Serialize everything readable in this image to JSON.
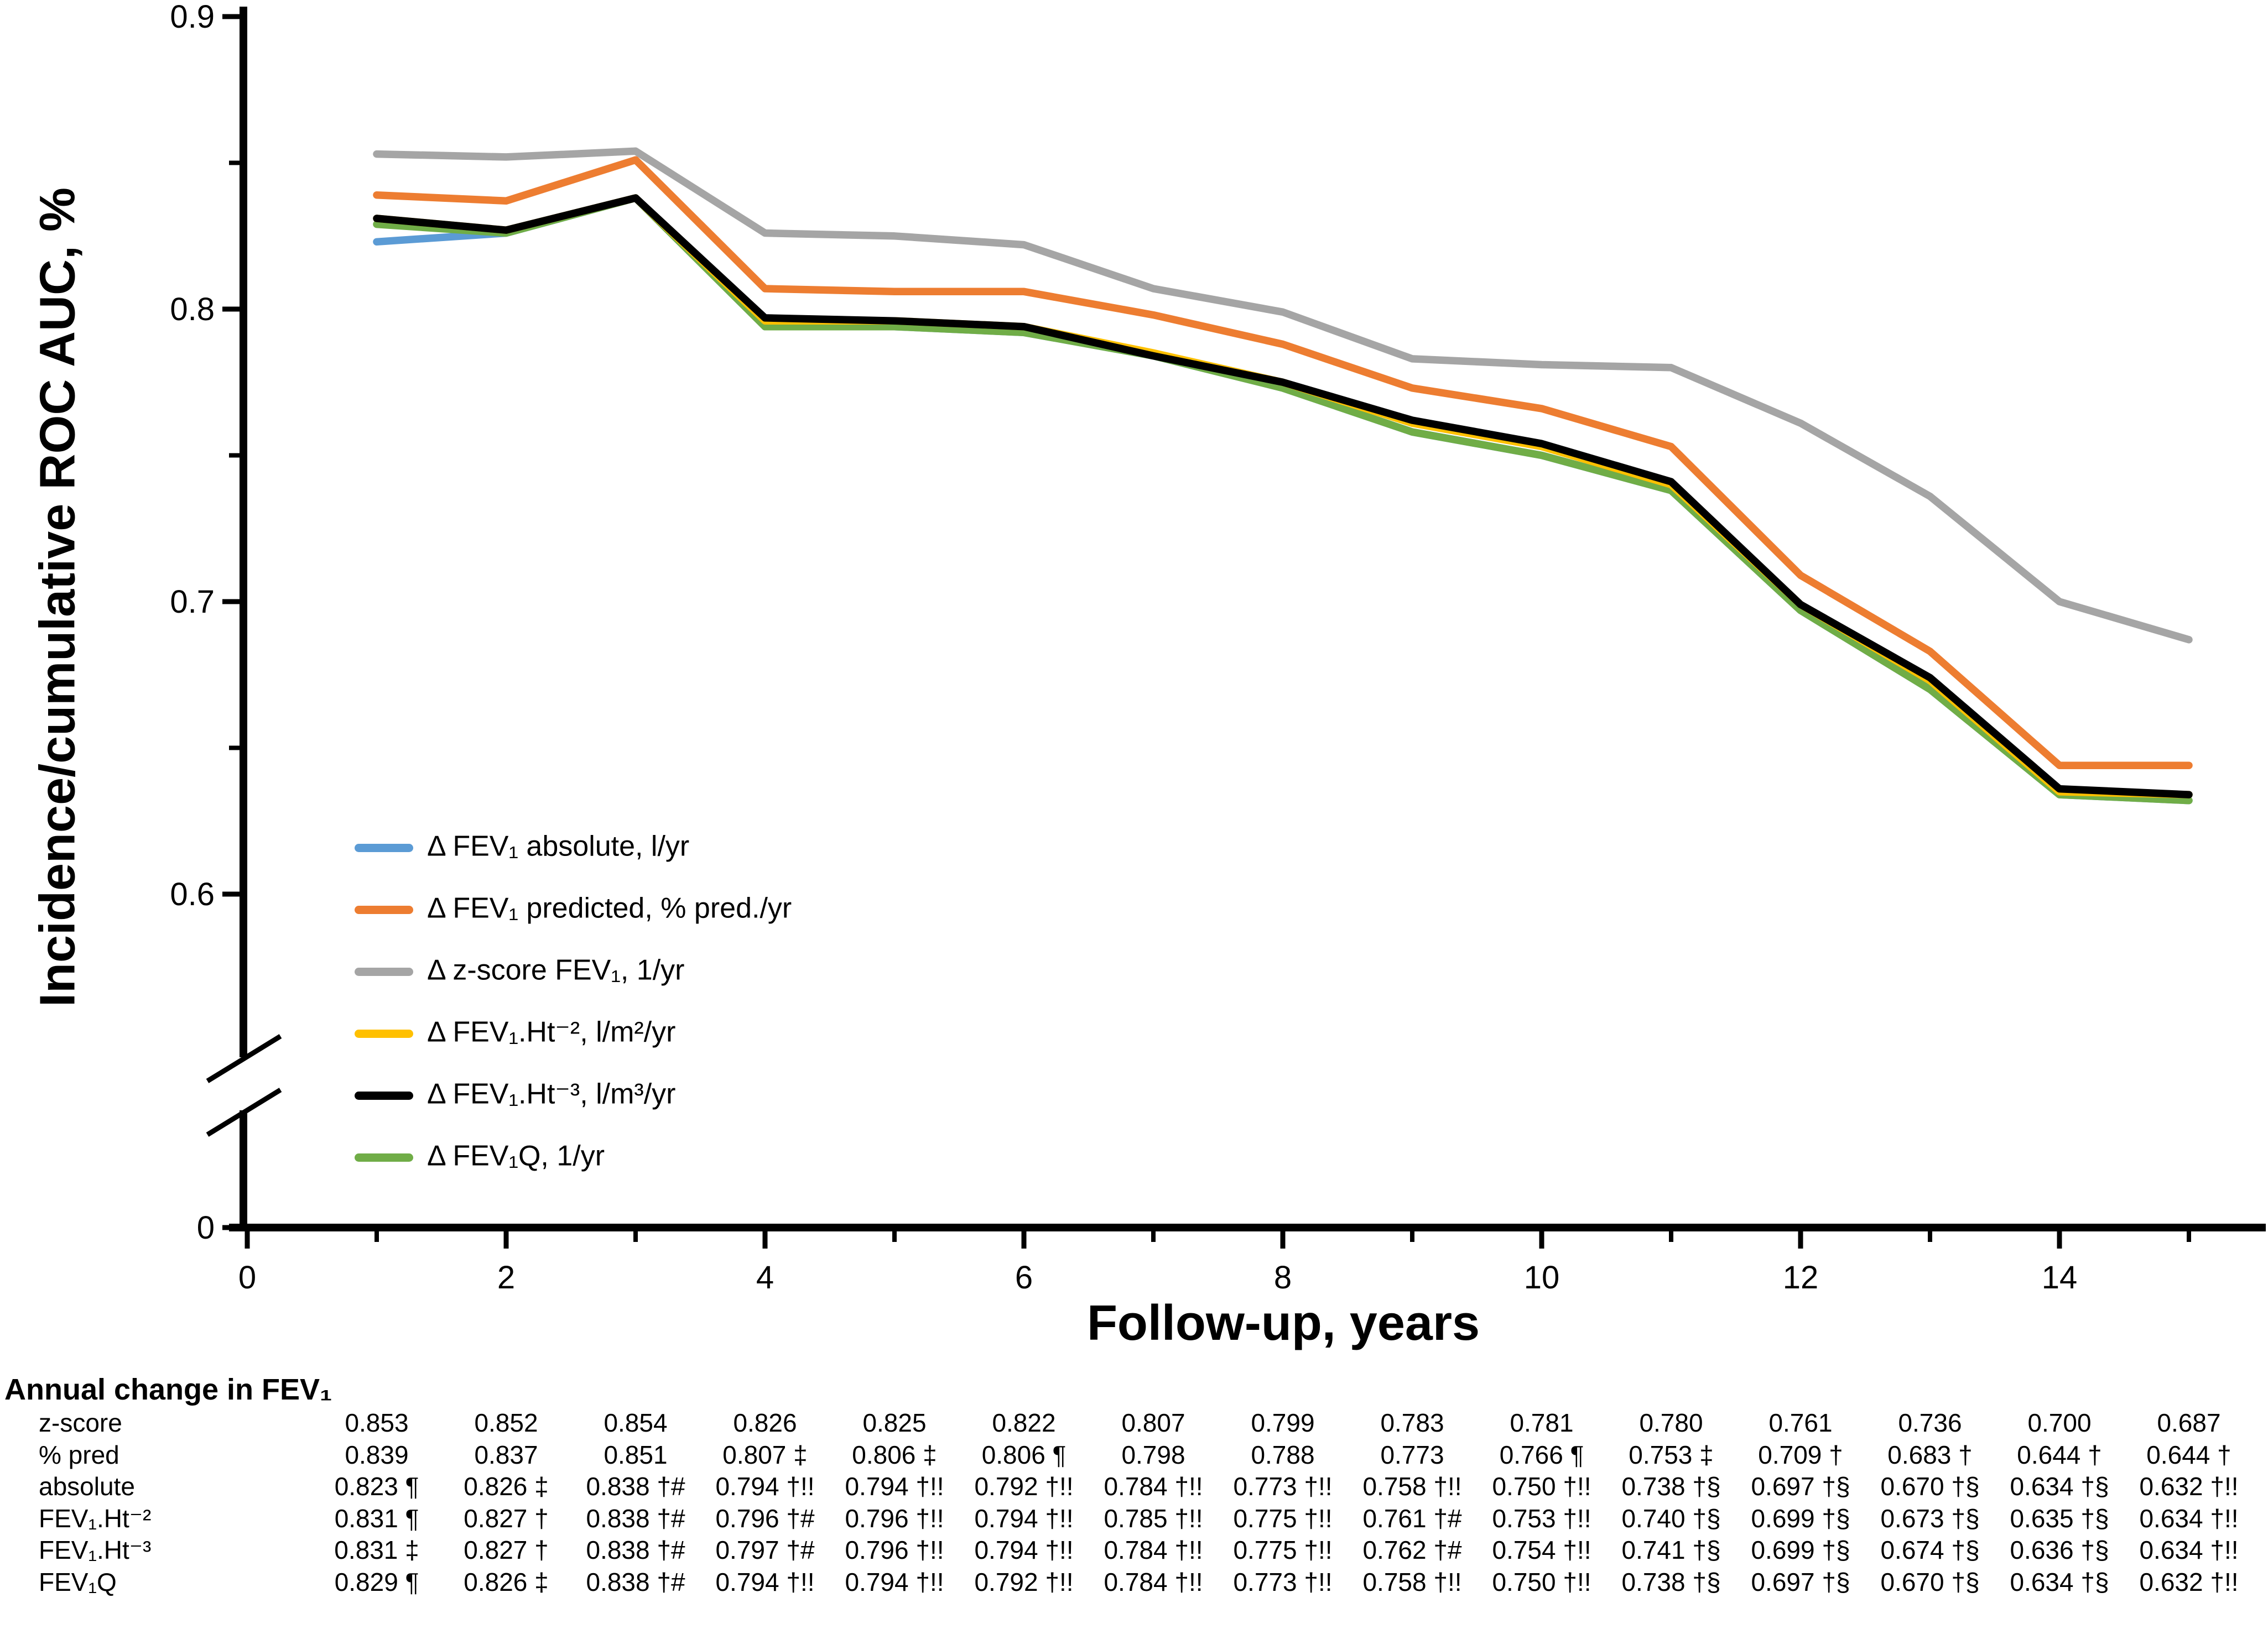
{
  "chart_data": {
    "type": "line",
    "xlabel": "Follow-up, years",
    "ylabel": "Incidence/cumulative ROC AUC, %",
    "x": [
      1,
      2,
      3,
      4,
      5,
      6,
      7,
      8,
      9,
      10,
      11,
      12,
      13,
      14,
      15
    ],
    "series": [
      {
        "name": "Δ FEV₁ absolute, l/yr",
        "slug": "delta-fev1-absolute",
        "color": "#5B9BD5",
        "values": [
          0.823,
          0.826,
          0.838,
          0.794,
          0.794,
          0.792,
          0.784,
          0.773,
          0.758,
          0.75,
          0.738,
          0.697,
          0.67,
          0.634,
          0.632
        ]
      },
      {
        "name": "Δ FEV₁ predicted, % pred./yr",
        "slug": "delta-fev1-predicted",
        "color": "#ED7D31",
        "values": [
          0.839,
          0.837,
          0.851,
          0.807,
          0.806,
          0.806,
          0.798,
          0.788,
          0.773,
          0.766,
          0.753,
          0.709,
          0.683,
          0.644,
          0.644
        ]
      },
      {
        "name": "Δ z-score FEV₁, 1/yr",
        "slug": "delta-zscore-fev1",
        "color": "#A5A5A5",
        "values": [
          0.853,
          0.852,
          0.854,
          0.826,
          0.825,
          0.822,
          0.807,
          0.799,
          0.783,
          0.781,
          0.78,
          0.761,
          0.736,
          0.7,
          0.687
        ]
      },
      {
        "name": "Δ FEV₁.Ht⁻², l/m²/yr",
        "slug": "delta-fev1-ht-2",
        "color": "#FFC000",
        "values": [
          0.831,
          0.827,
          0.838,
          0.796,
          0.796,
          0.794,
          0.785,
          0.775,
          0.761,
          0.753,
          0.74,
          0.699,
          0.673,
          0.635,
          0.634
        ]
      },
      {
        "name": "Δ FEV₁.Ht⁻³, l/m³/yr",
        "slug": "delta-fev1-ht-3",
        "color": "#000000",
        "values": [
          0.831,
          0.827,
          0.838,
          0.797,
          0.796,
          0.794,
          0.784,
          0.775,
          0.762,
          0.754,
          0.741,
          0.699,
          0.674,
          0.636,
          0.634
        ]
      },
      {
        "name": "Δ FEV₁Q, 1/yr",
        "slug": "delta-fev1q",
        "color": "#70AD47",
        "values": [
          0.829,
          0.826,
          0.838,
          0.794,
          0.794,
          0.792,
          0.784,
          0.773,
          0.758,
          0.75,
          0.738,
          0.697,
          0.67,
          0.634,
          0.632
        ]
      }
    ],
    "x_ticks_major": [
      0,
      2,
      4,
      6,
      8,
      10,
      12,
      14
    ],
    "x_tick_labels": [
      "0",
      "2",
      "4",
      "6",
      "8",
      "10",
      "12",
      "14"
    ],
    "x_ticks_minor": [
      1,
      3,
      5,
      7,
      9,
      11,
      13,
      15
    ],
    "y_ticks_major": [
      0.9,
      0.8,
      0.7,
      0.6
    ],
    "y_tick_labels": [
      "0.9",
      "0.8",
      "0.7",
      "0.6"
    ],
    "y_ticks_minor": [
      0.85,
      0.75,
      0.65
    ],
    "y_zero_label": "0",
    "y_axis_break": true,
    "ylim": [
      0.6,
      0.9
    ],
    "grid": false,
    "legend_position": "inside-lower-left"
  },
  "table": {
    "header": "Annual change in FEV₁",
    "rows": [
      {
        "label": "z-score",
        "cells": [
          "0.853",
          "0.852",
          "0.854",
          "0.826",
          "0.825",
          "0.822",
          "0.807",
          "0.799",
          "0.783",
          "0.781",
          "0.780",
          "0.761",
          "0.736",
          "0.700",
          "0.687"
        ]
      },
      {
        "label": "% pred",
        "cells": [
          "0.839",
          "0.837",
          "0.851",
          "0.807 ‡",
          "0.806 ‡",
          "0.806 ¶",
          "0.798",
          "0.788",
          "0.773",
          "0.766 ¶",
          "0.753 ‡",
          "0.709 †",
          "0.683 †",
          "0.644 †",
          "0.644 †"
        ]
      },
      {
        "label": "absolute",
        "cells": [
          "0.823 ¶",
          "0.826 ‡",
          "0.838 †#",
          "0.794 †!!",
          "0.794 †!!",
          "0.792 †!!",
          "0.784 †!!",
          "0.773 †!!",
          "0.758 †!!",
          "0.750 †!!",
          "0.738 †§",
          "0.697 †§",
          "0.670 †§",
          "0.634 †§",
          "0.632 †!!"
        ]
      },
      {
        "label": "FEV₁.Ht⁻²",
        "cells": [
          "0.831 ¶",
          "0.827 †",
          "0.838 †#",
          "0.796 †#",
          "0.796 †!!",
          "0.794 †!!",
          "0.785 †!!",
          "0.775 †!!",
          "0.761 †#",
          "0.753 †!!",
          "0.740 †§",
          "0.699 †§",
          "0.673 †§",
          "0.635 †§",
          "0.634 †!!"
        ]
      },
      {
        "label": "FEV₁.Ht⁻³",
        "cells": [
          "0.831 ‡",
          "0.827 †",
          "0.838 †#",
          "0.797 †#",
          "0.796 †!!",
          "0.794 †!!",
          "0.784 †!!",
          "0.775 †!!",
          "0.762 †#",
          "0.754 †!!",
          "0.741 †§",
          "0.699 †§",
          "0.674 †§",
          "0.636 †§",
          "0.634 †!!"
        ]
      },
      {
        "label": "FEV₁Q",
        "cells": [
          "0.829 ¶",
          "0.826 ‡",
          "0.838 †#",
          "0.794 †!!",
          "0.794 †!!",
          "0.792 †!!",
          "0.784 †!!",
          "0.773 †!!",
          "0.758 †!!",
          "0.750 †!!",
          "0.738 †§",
          "0.697 †§",
          "0.670 †§",
          "0.634 †§",
          "0.632 †!!"
        ]
      }
    ]
  }
}
